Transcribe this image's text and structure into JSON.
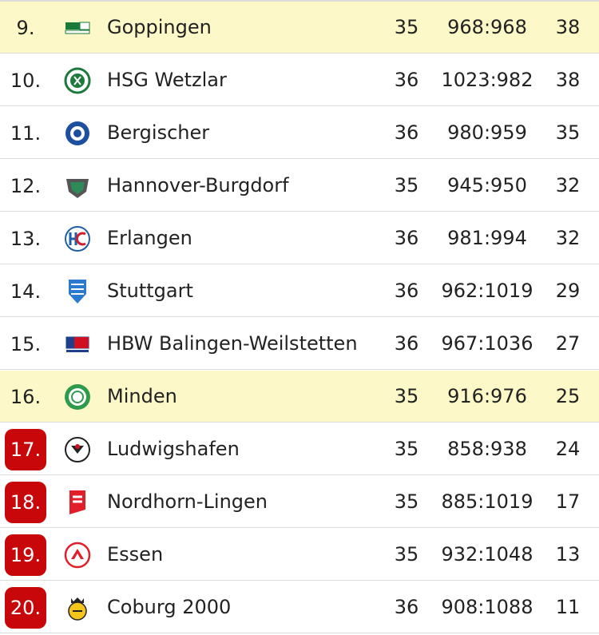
{
  "rows": [
    {
      "rank": "9.",
      "team": "Goppingen",
      "games": "35",
      "goals": "968:968",
      "points": "38",
      "highlight": true,
      "relegation": false,
      "logo": "goppingen-logo"
    },
    {
      "rank": "10.",
      "team": "HSG Wetzlar",
      "games": "36",
      "goals": "1023:982",
      "points": "38",
      "highlight": false,
      "relegation": false,
      "logo": "wetzlar-logo"
    },
    {
      "rank": "11.",
      "team": "Bergischer",
      "games": "36",
      "goals": "980:959",
      "points": "35",
      "highlight": false,
      "relegation": false,
      "logo": "bergischer-logo"
    },
    {
      "rank": "12.",
      "team": "Hannover-Burgdorf",
      "games": "35",
      "goals": "945:950",
      "points": "32",
      "highlight": false,
      "relegation": false,
      "logo": "hannover-logo"
    },
    {
      "rank": "13.",
      "team": "Erlangen",
      "games": "36",
      "goals": "981:994",
      "points": "32",
      "highlight": false,
      "relegation": false,
      "logo": "erlangen-logo"
    },
    {
      "rank": "14.",
      "team": "Stuttgart",
      "games": "36",
      "goals": "962:1019",
      "points": "29",
      "highlight": false,
      "relegation": false,
      "logo": "stuttgart-logo"
    },
    {
      "rank": "15.",
      "team": "HBW Balingen-Weilstetten",
      "games": "36",
      "goals": "967:1036",
      "points": "27",
      "highlight": false,
      "relegation": false,
      "logo": "balingen-logo"
    },
    {
      "rank": "16.",
      "team": "Minden",
      "games": "35",
      "goals": "916:976",
      "points": "25",
      "highlight": true,
      "relegation": false,
      "logo": "minden-logo"
    },
    {
      "rank": "17.",
      "team": "Ludwigshafen",
      "games": "35",
      "goals": "858:938",
      "points": "24",
      "highlight": false,
      "relegation": true,
      "logo": "ludwigshafen-logo"
    },
    {
      "rank": "18.",
      "team": "Nordhorn-Lingen",
      "games": "35",
      "goals": "885:1019",
      "points": "17",
      "highlight": false,
      "relegation": true,
      "logo": "nordhorn-logo"
    },
    {
      "rank": "19.",
      "team": "Essen",
      "games": "35",
      "goals": "932:1048",
      "points": "13",
      "highlight": false,
      "relegation": true,
      "logo": "essen-logo"
    },
    {
      "rank": "20.",
      "team": "Coburg 2000",
      "games": "36",
      "goals": "908:1088",
      "points": "11",
      "highlight": false,
      "relegation": true,
      "logo": "coburg-logo"
    }
  ],
  "colors": {
    "highlight": "#fdf8c8",
    "relegation": "#c8070b",
    "divider": "#dcdcdc"
  }
}
